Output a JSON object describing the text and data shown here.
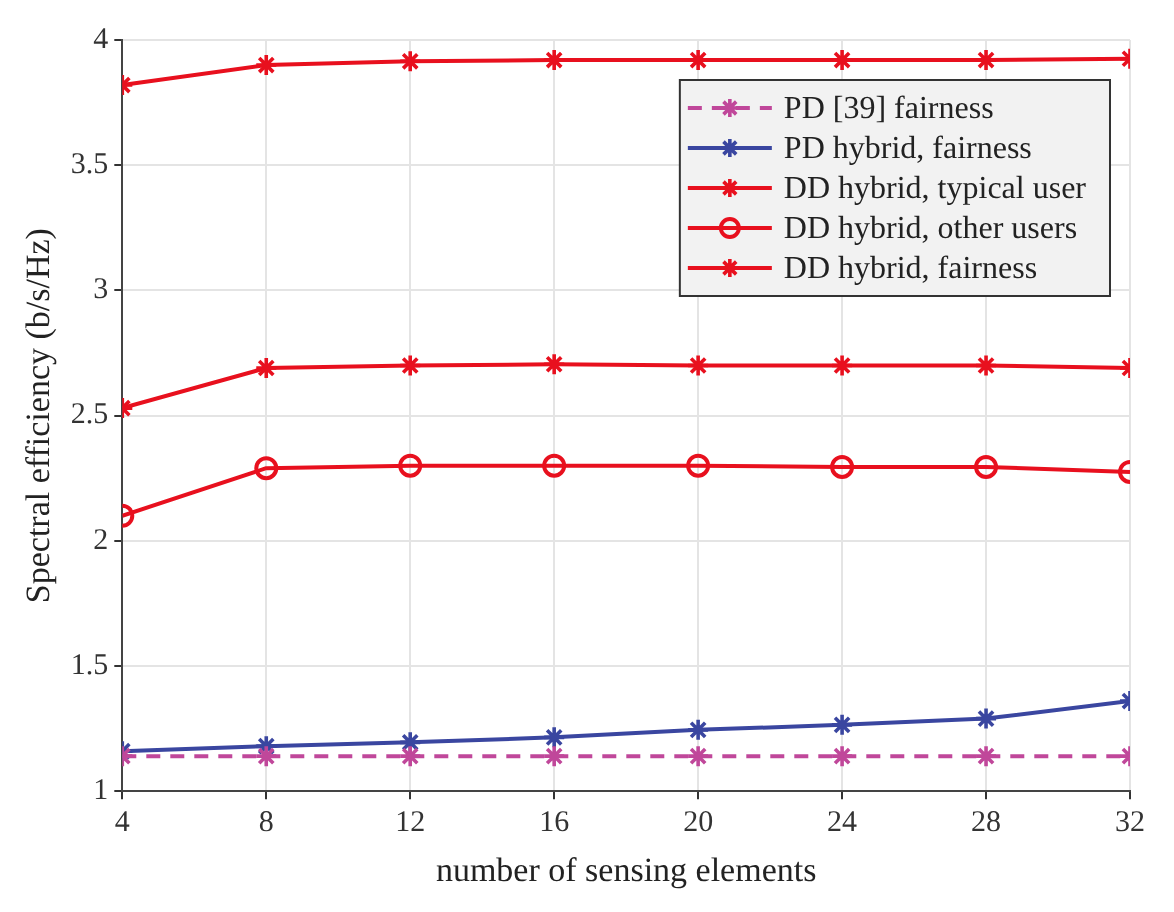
{
  "chart_data": {
    "type": "line",
    "xlabel": "number of sensing elements",
    "ylabel": "Spectral efficiency (b/s/Hz)",
    "x": [
      4,
      8,
      12,
      16,
      20,
      24,
      28,
      32
    ],
    "xlim": [
      4,
      32
    ],
    "xticks": [
      4,
      8,
      12,
      16,
      20,
      24,
      28,
      32
    ],
    "ylim": [
      1,
      4
    ],
    "yticks": [
      1,
      1.5,
      2,
      2.5,
      3,
      3.5,
      4
    ],
    "grid": true,
    "legend": "top right",
    "series": [
      {
        "name": "PD [39] fairness",
        "color": "#c0479a",
        "marker": "cross",
        "line_style": "dashed",
        "values": [
          1.14,
          1.14,
          1.14,
          1.14,
          1.14,
          1.14,
          1.14,
          1.14
        ]
      },
      {
        "name": "PD hybrid, fairness",
        "color": "#3a46a0",
        "marker": "cross",
        "line_style": "solid",
        "values": [
          1.16,
          1.18,
          1.195,
          1.215,
          1.245,
          1.265,
          1.29,
          1.36
        ]
      },
      {
        "name": "DD hybrid, typical user",
        "color": "#e8101e",
        "marker": "cross",
        "line_style": "solid",
        "values": [
          3.82,
          3.9,
          3.915,
          3.92,
          3.92,
          3.92,
          3.92,
          3.925
        ]
      },
      {
        "name": "DD hybrid, other users",
        "color": "#e8101e",
        "marker": "circle",
        "line_style": "solid",
        "values": [
          2.1,
          2.29,
          2.3,
          2.3,
          2.3,
          2.295,
          2.295,
          2.275
        ]
      },
      {
        "name": "DD hybrid, fairness",
        "color": "#e8101e",
        "marker": "cross",
        "line_style": "solid",
        "values": [
          2.53,
          2.69,
          2.7,
          2.705,
          2.7,
          2.7,
          2.7,
          2.69
        ]
      }
    ]
  }
}
